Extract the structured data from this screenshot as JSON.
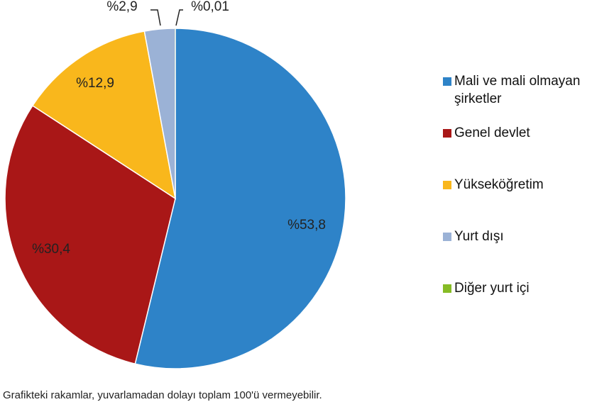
{
  "chart_data": {
    "type": "pie",
    "categories": [
      "Mali ve mali olmayan şirketler",
      "Genel devlet",
      "Yükseköğretim",
      "Yurt dışı",
      "Diğer yurt içi"
    ],
    "values": [
      53.8,
      30.4,
      12.9,
      2.9,
      0.01
    ],
    "data_labels": [
      "%53,8",
      "%30,4",
      "%12,9",
      "%2,9",
      "%0,01"
    ],
    "colors": [
      "#2e83c8",
      "#a91717",
      "#f9b71c",
      "#9bb2d6",
      "#86bc25"
    ],
    "start_angle_deg": 0,
    "direction": "clockwise",
    "legend_position": "right"
  },
  "legend": {
    "items": [
      {
        "label": "Mali ve mali olmayan şirketler",
        "color": "#2e83c8"
      },
      {
        "label": "Genel devlet",
        "color": "#a91717"
      },
      {
        "label": "Yükseköğretim",
        "color": "#f9b71c"
      },
      {
        "label": "Yurt dışı",
        "color": "#9bb2d6"
      },
      {
        "label": "Diğer yurt içi",
        "color": "#86bc25"
      }
    ]
  },
  "footnote": "Grafikteki rakamlar, yuvarlamadan dolayı toplam 100'ü vermeyebilir."
}
